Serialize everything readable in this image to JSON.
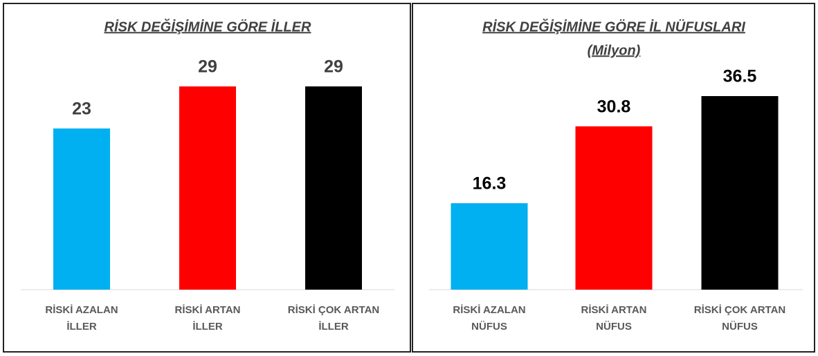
{
  "chart_data": [
    {
      "type": "bar",
      "title": "RİSK DEĞİŞİMİNE GÖRE İLLER",
      "categories": [
        [
          "RİSKİ AZALAN",
          "İLLER"
        ],
        [
          "RİSKİ ARTAN",
          "İLLER"
        ],
        [
          "RİSKİ ÇOK ARTAN",
          "İLLER"
        ]
      ],
      "values": [
        23,
        29,
        29
      ],
      "colors": [
        "#00b0f0",
        "#ff0000",
        "#000000"
      ]
    },
    {
      "type": "bar",
      "title": "RİSK DEĞİŞİMİNE GÖRE İL NÜFUSLARI",
      "subtitle": "(Milyon)",
      "categories": [
        [
          "RİSKİ AZALAN",
          "NÜFUS"
        ],
        [
          "RİSKİ ARTAN",
          "NÜFUS"
        ],
        [
          "RİSKİ ÇOK ARTAN",
          "NÜFUS"
        ]
      ],
      "values": [
        16.3,
        30.8,
        36.5
      ],
      "colors": [
        "#00b0f0",
        "#ff0000",
        "#000000"
      ]
    }
  ]
}
